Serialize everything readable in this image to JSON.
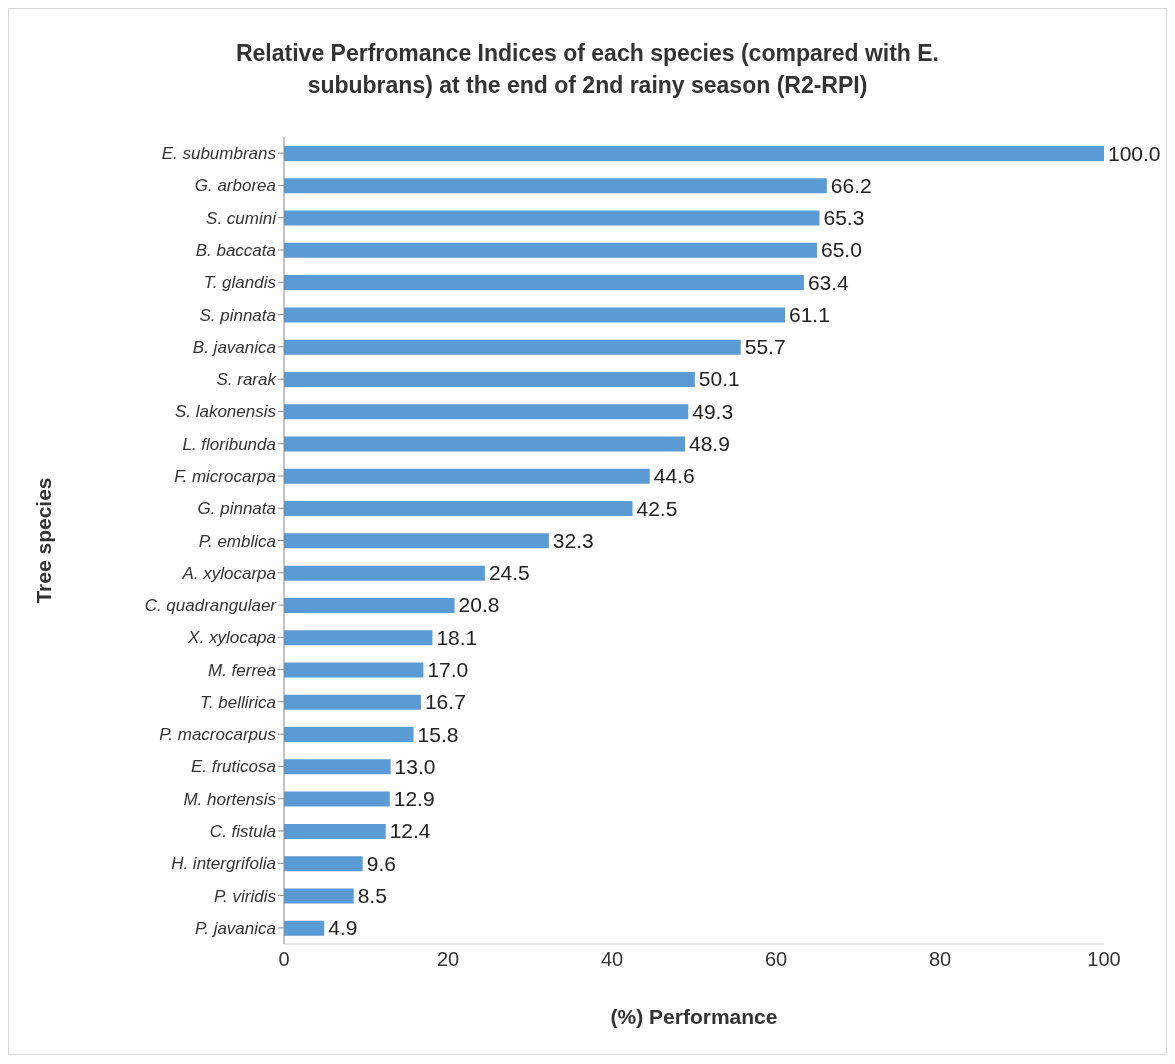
{
  "chart_data": {
    "type": "bar",
    "orientation": "horizontal",
    "title": "Relative Perfromance Indices of each species (compared with E. sububrans) at the end of 2nd rainy season (R2-RPI)",
    "xlabel": "(%) Performance",
    "ylabel": "Tree species",
    "categories": [
      "E. subumbrans",
      "G. arborea",
      "S. cumini",
      "B. baccata",
      "T. glandis",
      "S. pinnata",
      "B. javanica",
      "S. rarak",
      "S. lakonensis",
      "L. floribunda",
      "F. microcarpa",
      "G. pinnata",
      "P. emblica",
      "A. xylocarpa",
      "C. quadrangulaer",
      "X. xylocapa",
      "M. ferrea",
      "T. bellirica",
      "P. macrocarpus",
      "E. fruticosa",
      "M. hortensis",
      "C. fistula",
      "H. intergrifolia",
      "P. viridis",
      "P. javanica"
    ],
    "values": [
      100.0,
      66.2,
      65.3,
      65.0,
      63.4,
      61.1,
      55.7,
      50.1,
      49.3,
      48.9,
      44.6,
      42.5,
      32.3,
      24.5,
      20.8,
      18.1,
      17.0,
      16.7,
      15.8,
      13.0,
      12.9,
      12.4,
      9.6,
      8.5,
      4.9
    ],
    "value_labels": [
      "100.0",
      "66.2",
      "65.3",
      "65.0",
      "63.4",
      "61.1",
      "55.7",
      "50.1",
      "49.3",
      "48.9",
      "44.6",
      "42.5",
      "32.3",
      "24.5",
      "20.8",
      "18.1",
      "17.0",
      "16.7",
      "15.8",
      "13.0",
      "12.9",
      "12.4",
      "9.6",
      "8.5",
      "4.9"
    ],
    "color": "#5b9bd5",
    "xlim": [
      0,
      100
    ],
    "xticks": [
      0,
      20,
      40,
      60,
      80,
      100
    ]
  }
}
